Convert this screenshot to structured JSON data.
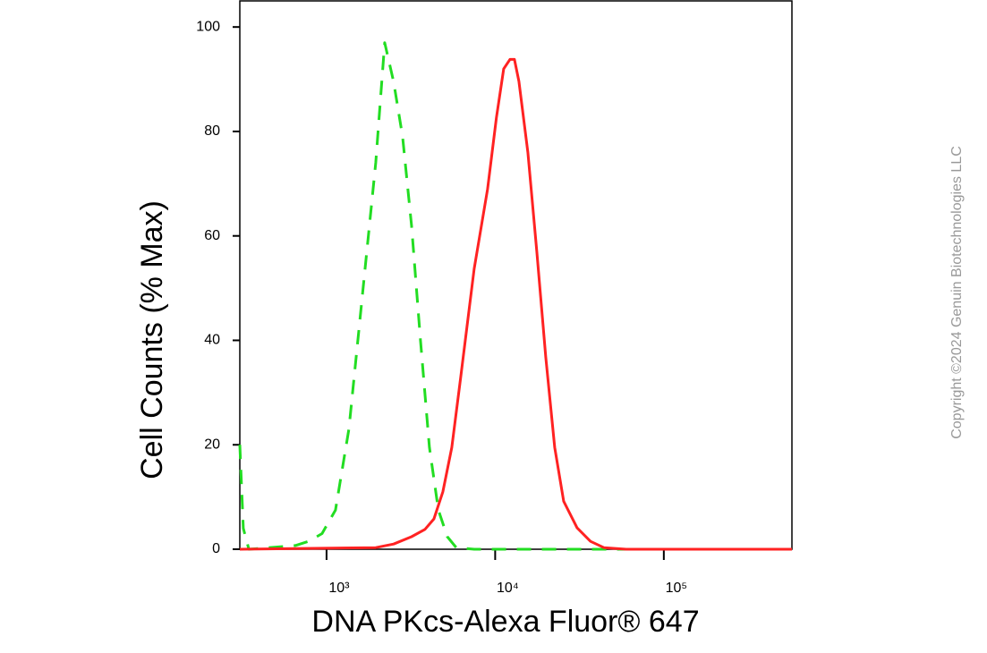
{
  "chart_data": {
    "type": "line",
    "xlabel": "DNA PKcs-Alexa Fluor® 647",
    "ylabel": "Cell Counts (% Max)",
    "annotation": "Copyright ©2024 Genuin Biotechnologies LLC",
    "xscale": "log",
    "xlim": [
      306,
      575000
    ],
    "ylim": [
      0,
      105
    ],
    "xticks": [
      {
        "value": 1000,
        "label": "10³"
      },
      {
        "value": 10000,
        "label": "10⁴"
      },
      {
        "value": 100000,
        "label": "10⁵"
      }
    ],
    "yticks": [
      0,
      20,
      40,
      60,
      80,
      100
    ],
    "grid": false,
    "series": [
      {
        "color": "#22dd22",
        "dash": true,
        "x": [
          306,
          321,
          346,
          652,
          783,
          941,
          1130,
          1357,
          1630,
          1957,
          2212,
          2500,
          2824,
          3192,
          3606,
          4076,
          4604,
          5203,
          5879,
          7505,
          575000
        ],
        "values": [
          20,
          4,
          0,
          0.7,
          1.5,
          3,
          7.5,
          23,
          48.5,
          74,
          97,
          89.5,
          79,
          62,
          40,
          19.5,
          7.5,
          2.4,
          0.3,
          0,
          0
        ]
      },
      {
        "color": "#ff2222",
        "dash": false,
        "x": [
          306,
          1957,
          2500,
          3192,
          3833,
          4331,
          4894,
          5530,
          6249,
          7505,
          9015,
          10180,
          11230,
          12230,
          13000,
          13820,
          15620,
          17650,
          19940,
          22530,
          25460,
          30580,
          36730,
          44130,
          59850,
          575000
        ],
        "values": [
          0,
          0.3,
          1,
          2.4,
          3.8,
          5.8,
          11,
          19.5,
          33,
          53.7,
          69,
          82.7,
          92,
          93.8,
          93.8,
          89.6,
          76,
          57,
          36.8,
          19.5,
          9.2,
          4.1,
          1.5,
          0.3,
          0,
          0
        ]
      }
    ]
  }
}
